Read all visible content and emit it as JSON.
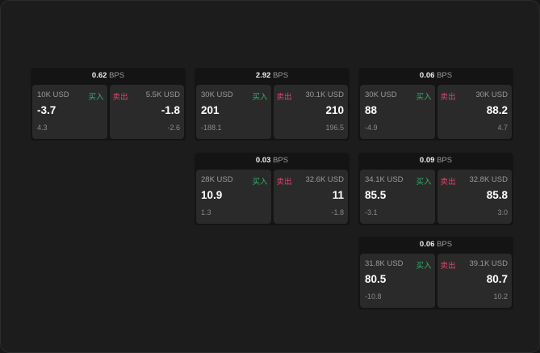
{
  "unit": "BPS",
  "buy_label": "买入",
  "sell_label": "卖出",
  "colors": {
    "buy": "#2fb36a",
    "sell": "#e0456a"
  },
  "cards": [
    {
      "spread": "0.62",
      "buy": {
        "size": "10K USD",
        "price": "-3.7",
        "change": "4.3"
      },
      "sell": {
        "size": "5.5K USD",
        "price": "-1.8",
        "change": "-2.6"
      }
    },
    {
      "spread": "2.92",
      "buy": {
        "size": "30K USD",
        "price": "201",
        "change": "-188.1"
      },
      "sell": {
        "size": "30.1K USD",
        "price": "210",
        "change": "196.5"
      }
    },
    {
      "spread": "0.06",
      "buy": {
        "size": "30K USD",
        "price": "88",
        "change": "-4.9"
      },
      "sell": {
        "size": "30K USD",
        "price": "88.2",
        "change": "4.7"
      }
    },
    {
      "spread": "0.03",
      "buy": {
        "size": "28K USD",
        "price": "10.9",
        "change": "1.3"
      },
      "sell": {
        "size": "32.6K USD",
        "price": "11",
        "change": "-1.8"
      }
    },
    {
      "spread": "0.09",
      "buy": {
        "size": "34.1K USD",
        "price": "85.5",
        "change": "-3.1"
      },
      "sell": {
        "size": "32.8K USD",
        "price": "85.8",
        "change": "3.0"
      }
    },
    {
      "spread": "0.06",
      "buy": {
        "size": "31.8K USD",
        "price": "80.5",
        "change": "-10.8"
      },
      "sell": {
        "size": "39.1K USD",
        "price": "80.7",
        "change": "10.2"
      }
    }
  ]
}
